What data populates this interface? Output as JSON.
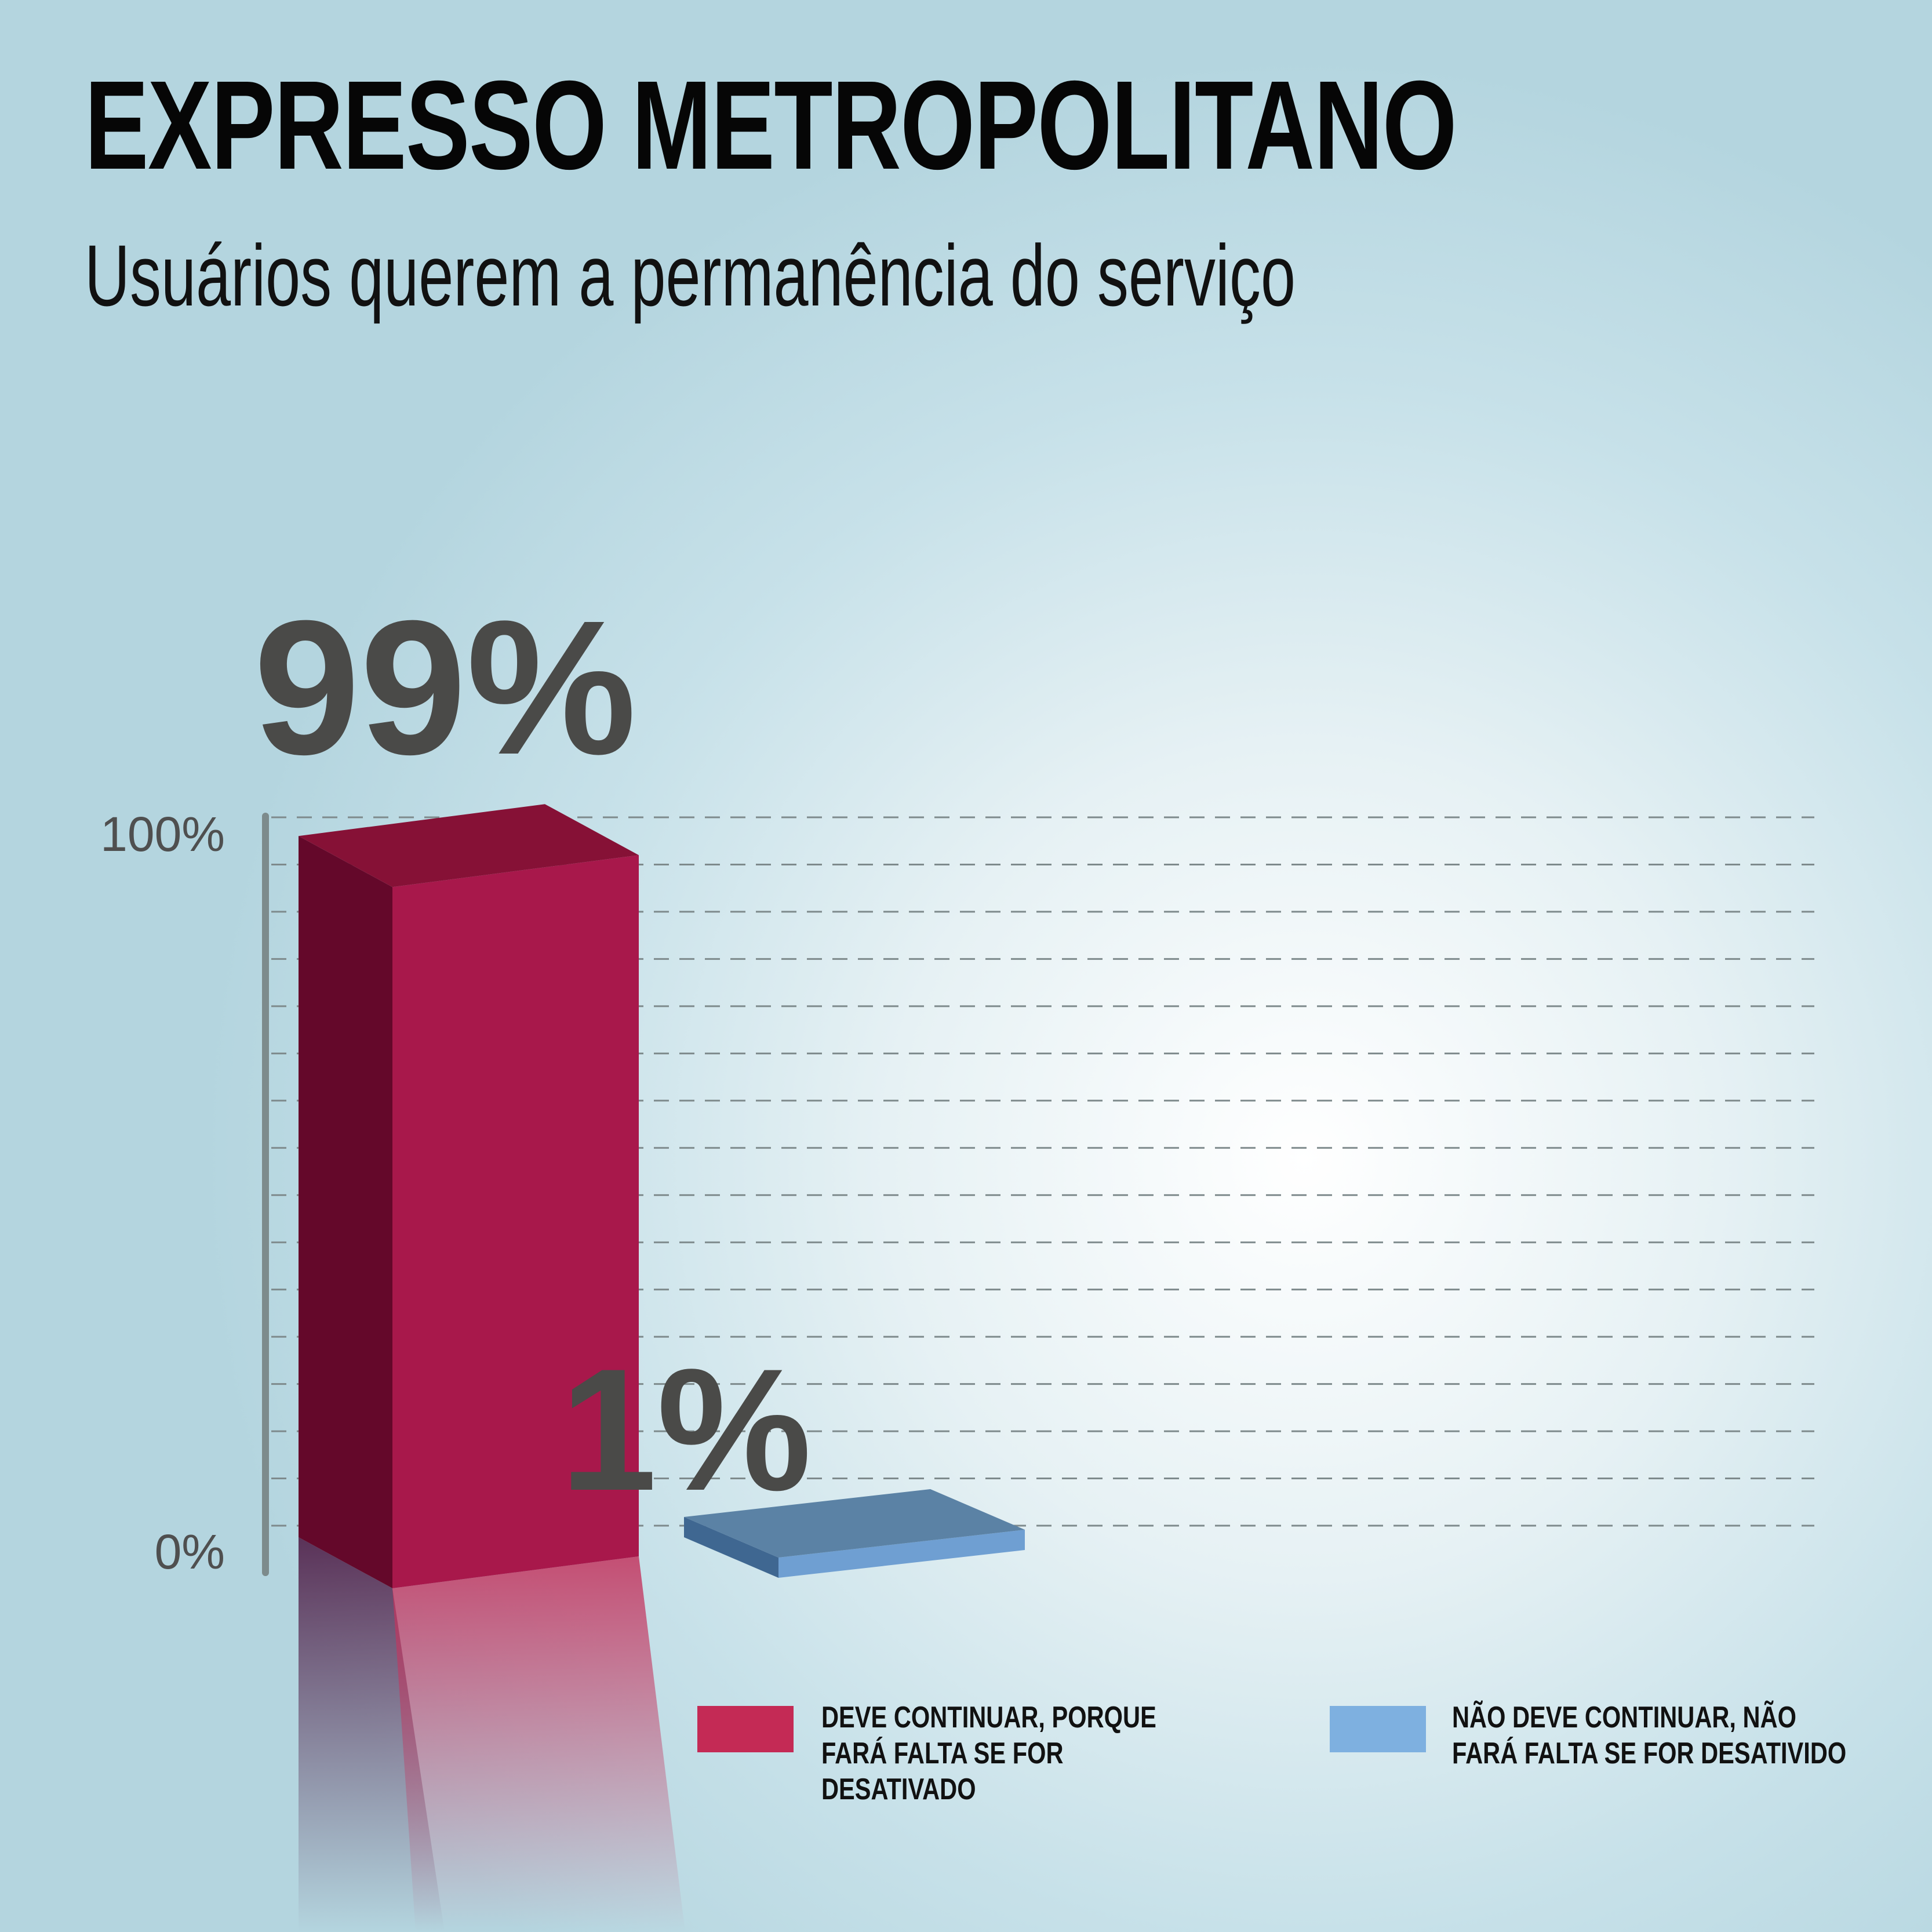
{
  "chart_data": {
    "type": "bar",
    "title": "EXPRESSO METROPOLITANO",
    "subtitle": "Usuários querem a permanência do serviço",
    "categories": [
      "DEVE CONTINUAR, PORQUE FARÁ FALTA SE FOR DESATIVADO",
      "NÃO DEVE CONTINUAR, NÃO FARÁ FALTA SE FOR DESATIVIDO"
    ],
    "values": [
      99,
      1
    ],
    "data_labels": [
      "99%",
      "1%"
    ],
    "ylim": [
      0,
      100
    ],
    "y_tick_labels": [
      "100%",
      "0%"
    ],
    "colors": [
      "#a8184b",
      "#7eb0e0"
    ],
    "grid": true,
    "legend": "bottom-right"
  }
}
